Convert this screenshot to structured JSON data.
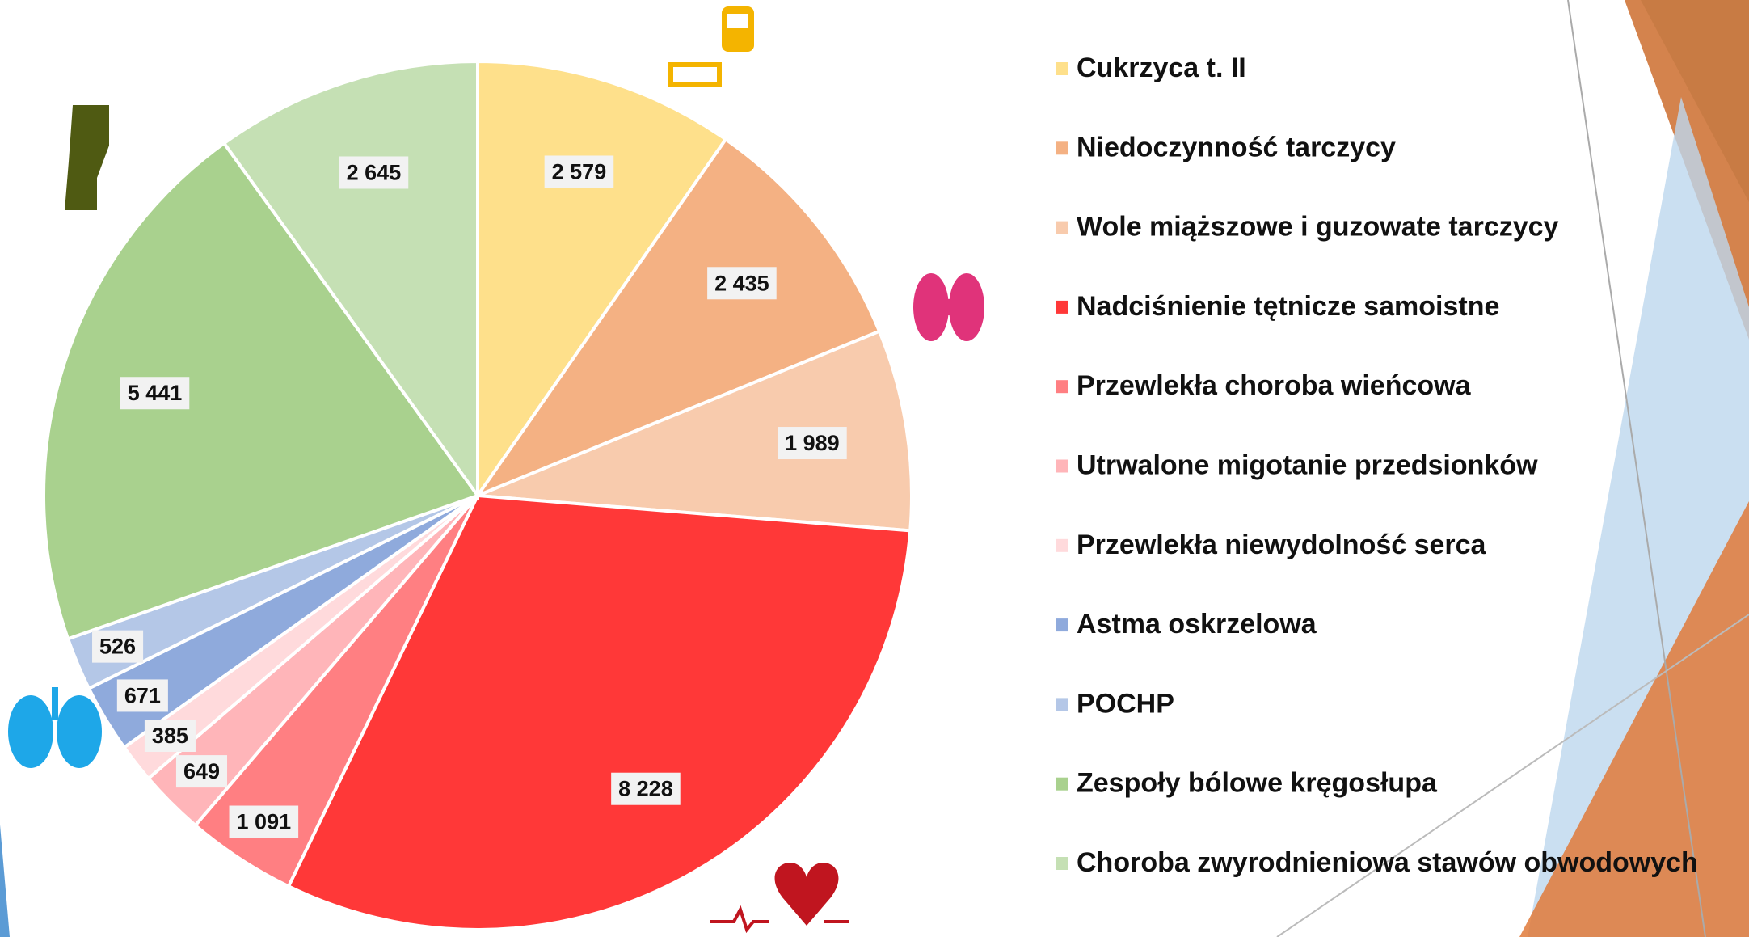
{
  "chart_data": {
    "type": "pie",
    "categories": [
      "Cukrzyca t. II",
      "Niedoczynność tarczycy",
      "Wole miąższowe i guzowate tarczycy",
      "Nadciśnienie tętnicze samoistne",
      "Przewlekła choroba wieńcowa",
      "Utrwalone migotanie przedsionków",
      "Przewlekła niewydolność serca",
      "Astma oskrzelowa",
      "POCHP",
      "Zespoły bólowe kręgosłupa",
      "Choroba zwyrodnieniowa stawów obwodowych"
    ],
    "values": [
      2579,
      2435,
      1989,
      8228,
      1091,
      649,
      385,
      671,
      526,
      5441,
      2645
    ],
    "value_labels": [
      "2 579",
      "2 435",
      "1 989",
      "8 228",
      "1 091",
      "649",
      "385",
      "671",
      "526",
      "5 441",
      "2 645"
    ],
    "colors": [
      "#fee08b",
      "#f4b183",
      "#f8cbad",
      "#ff3838",
      "#ff7f82",
      "#ffb5b9",
      "#ffdadc",
      "#8faadc",
      "#b4c7e7",
      "#a9d18e",
      "#c5e0b4"
    ],
    "legend": "right"
  }
}
